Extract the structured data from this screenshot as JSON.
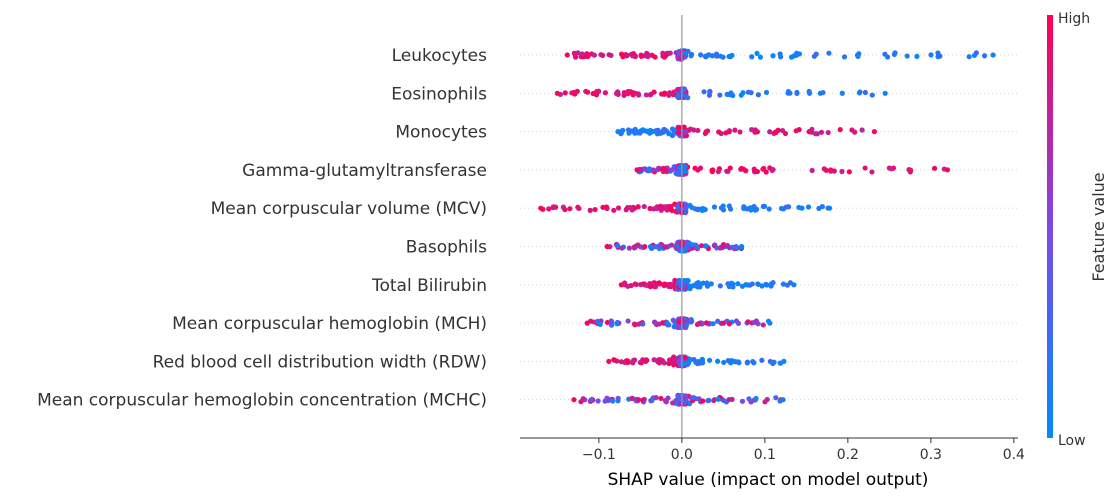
{
  "chart_data": {
    "type": "scatter",
    "subtype": "shap-beeswarm",
    "xlabel": "SHAP value (impact on model output)",
    "xticks": [
      -0.1,
      0.0,
      0.1,
      0.2,
      0.3,
      0.4
    ],
    "xtick_labels": [
      "−0.1",
      "0.0",
      "0.1",
      "0.2",
      "0.3",
      "0.4"
    ],
    "xlim": [
      -0.195,
      0.405
    ],
    "features": [
      "Leukocytes",
      "Eosinophils",
      "Monocytes",
      "Gamma-glutamyltransferase ",
      "Mean corpuscular volume (MCV)",
      "Basophils",
      "Total Bilirubin",
      "Mean corpuscular hemoglobin (MCH)",
      "Red blood cell distribution width (RDW)",
      "Mean corpuscular hemoglobin concentration (MCHC)"
    ],
    "shap_ranges": [
      {
        "feature": "Leukocytes",
        "min": -0.138,
        "max": 0.375,
        "low_side": "positive",
        "high_side": "negative"
      },
      {
        "feature": "Eosinophils",
        "min": -0.15,
        "max": 0.245,
        "low_side": "positive",
        "high_side": "negative"
      },
      {
        "feature": "Monocytes",
        "min": -0.077,
        "max": 0.232,
        "low_side": "negative",
        "high_side": "positive"
      },
      {
        "feature": "Gamma-glutamyltransferase ",
        "min": -0.054,
        "max": 0.32,
        "low_side": "mixed",
        "high_side": "positive"
      },
      {
        "feature": "Mean corpuscular volume (MCV)",
        "min": -0.17,
        "max": 0.178,
        "low_side": "positive",
        "high_side": "negative"
      },
      {
        "feature": "Basophils",
        "min": -0.09,
        "max": 0.072,
        "low_side": "mixed",
        "high_side": "mixed"
      },
      {
        "feature": "Total Bilirubin",
        "min": -0.073,
        "max": 0.135,
        "low_side": "positive",
        "high_side": "negative"
      },
      {
        "feature": "Mean corpuscular hemoglobin (MCH)",
        "min": -0.114,
        "max": 0.106,
        "low_side": "mixed",
        "high_side": "mixed"
      },
      {
        "feature": "Red blood cell distribution width (RDW)",
        "min": -0.088,
        "max": 0.123,
        "low_side": "positive",
        "high_side": "negative"
      },
      {
        "feature": "Mean corpuscular hemoglobin concentration (MCHC)",
        "min": -0.13,
        "max": 0.122,
        "low_side": "mixed",
        "high_side": "mixed"
      }
    ],
    "colorbar": {
      "label": "Feature value",
      "high_label": "High",
      "low_label": "Low",
      "high_color": "#ff0052",
      "low_color": "#008bfb"
    },
    "colors": {
      "low": "#008bfb",
      "mid": "#7c48e8",
      "high": "#ff0052",
      "zero_line": "#999999",
      "row_guide": "#cccccc"
    },
    "grid": false,
    "legend": "colorbar-right"
  }
}
